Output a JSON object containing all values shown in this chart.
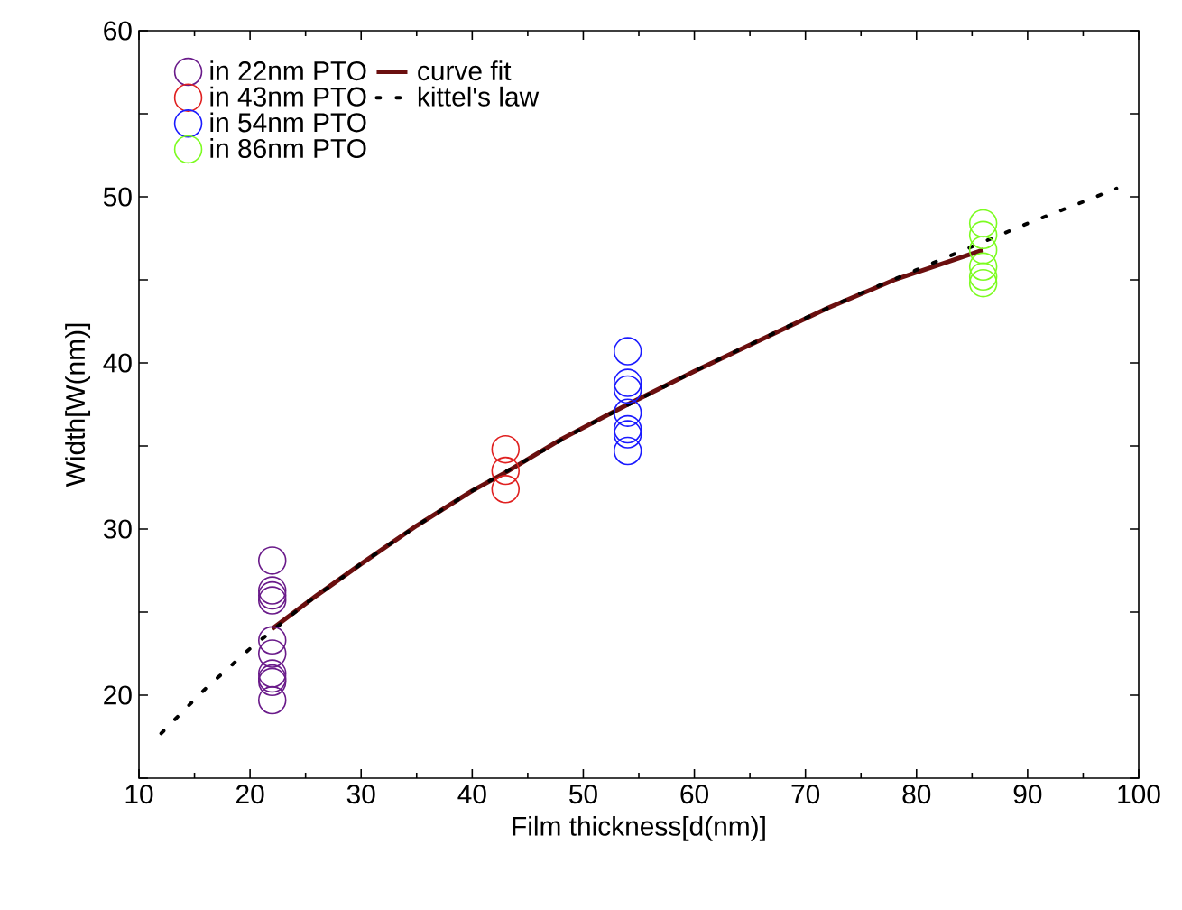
{
  "chart_data": {
    "type": "scatter",
    "xlabel": "Film thickness[d(nm)]",
    "ylabel": "Width[W(nm)]",
    "xlim": [
      10,
      100
    ],
    "ylim": [
      15,
      60
    ],
    "xticks": [
      10,
      20,
      30,
      40,
      50,
      60,
      70,
      80,
      90,
      100
    ],
    "yticks": [
      {
        "value": 15,
        "label": null
      },
      20,
      {
        "value": 25,
        "label": null
      },
      30,
      {
        "value": 35,
        "label": null
      },
      40,
      {
        "value": 45,
        "label": null
      },
      50,
      {
        "value": 55,
        "label": null
      },
      60
    ],
    "legend": "top left",
    "marker": "circle",
    "grid": false,
    "series": [
      {
        "name": "in 22nm PTO",
        "color": "#6a1b8a",
        "x": [
          22,
          22,
          22,
          22,
          22,
          22,
          22,
          22,
          22,
          22
        ],
        "values": [
          28.1,
          26.3,
          26.0,
          25.7,
          23.3,
          22.5,
          21.3,
          21.0,
          20.8,
          19.7
        ]
      },
      {
        "name": "curve fit",
        "type": "line",
        "marker": "none",
        "line_style": "solid",
        "color": "#6b0f0f",
        "x": [
          22,
          26,
          30,
          35,
          40,
          43,
          48,
          54,
          60,
          66,
          72,
          78,
          86
        ],
        "values": [
          24.0,
          26.0,
          27.9,
          30.2,
          32.3,
          33.4,
          35.4,
          37.5,
          39.5,
          41.4,
          43.3,
          45.0,
          46.8
        ]
      },
      {
        "name": "in 43nm PTO",
        "color": "#e02020",
        "x": [
          43,
          43,
          43
        ],
        "values": [
          34.8,
          33.5,
          32.4
        ]
      },
      {
        "name": "kittel's law",
        "type": "line",
        "marker": "none",
        "line_style": "dotted",
        "color": "#000000",
        "x": [
          12,
          16,
          20,
          25,
          30,
          35,
          40,
          45,
          50,
          55,
          60,
          65,
          70,
          75,
          80,
          85,
          90,
          95,
          98
        ],
        "values": [
          17.7,
          20.4,
          22.8,
          25.5,
          27.9,
          30.2,
          32.3,
          34.2,
          36.1,
          37.8,
          39.5,
          41.1,
          42.7,
          44.2,
          45.6,
          47.0,
          48.4,
          49.7,
          50.5
        ]
      },
      {
        "name": "in 54nm PTO",
        "color": "#1a1aff",
        "x": [
          54,
          54,
          54,
          54,
          54,
          54,
          54
        ],
        "values": [
          40.7,
          38.8,
          38.4,
          37.0,
          36.0,
          35.7,
          34.7
        ]
      },
      {
        "name": "in 86nm PTO",
        "color": "#7cfc20",
        "x": [
          86,
          86,
          86,
          86,
          86,
          86
        ],
        "values": [
          48.4,
          47.7,
          46.8,
          45.8,
          45.2,
          44.8
        ]
      }
    ]
  }
}
